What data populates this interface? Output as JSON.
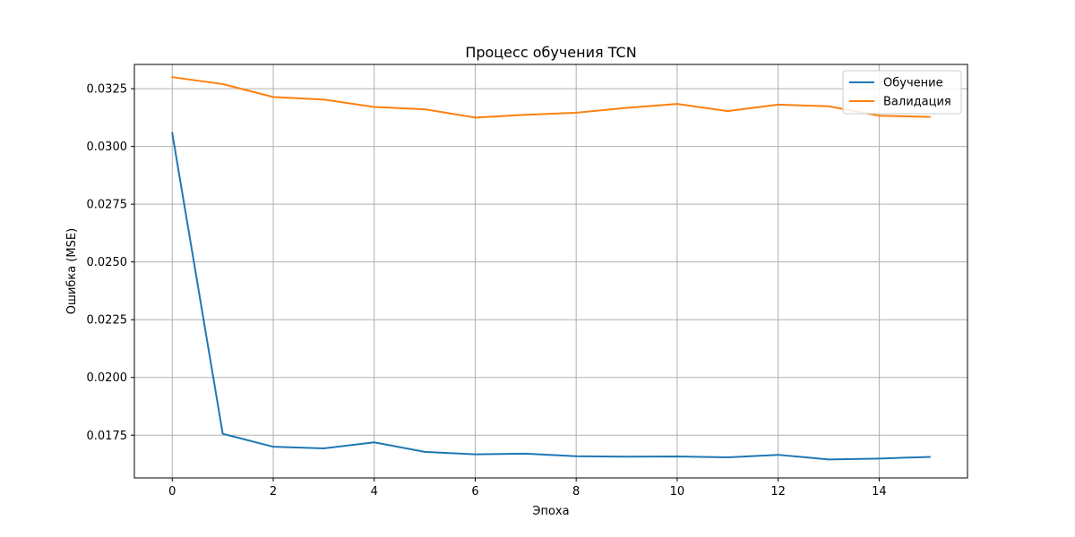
{
  "chart_data": {
    "type": "line",
    "title": "Процесс обучения TCN",
    "xlabel": "Эпоха",
    "ylabel": "Ошибка (MSE)",
    "xlim": [
      -0.75,
      15.75
    ],
    "ylim": [
      0.01565,
      0.03355
    ],
    "grid": true,
    "legend_position": "top-right",
    "x": [
      0,
      1,
      2,
      3,
      4,
      5,
      6,
      7,
      8,
      9,
      10,
      11,
      12,
      13,
      14,
      15
    ],
    "x_ticks": [
      0,
      2,
      4,
      6,
      8,
      10,
      12,
      14
    ],
    "x_tick_labels": [
      "0",
      "2",
      "4",
      "6",
      "8",
      "10",
      "12",
      "14"
    ],
    "y_ticks": [
      0.0175,
      0.02,
      0.0225,
      0.025,
      0.0275,
      0.03,
      0.0325
    ],
    "y_tick_labels": [
      "0.0175",
      "0.0200",
      "0.0225",
      "0.0250",
      "0.0275",
      "0.0300",
      "0.0325"
    ],
    "series": [
      {
        "name": "Обучение",
        "color": "#1f77b4",
        "values": [
          0.03058,
          0.01756,
          0.017,
          0.01693,
          0.01719,
          0.01678,
          0.01667,
          0.0167,
          0.01659,
          0.01657,
          0.01658,
          0.01654,
          0.01665,
          0.01645,
          0.01649,
          0.01656
        ]
      },
      {
        "name": "Валидация",
        "color": "#ff7f0e",
        "values": [
          0.033,
          0.0327,
          0.03214,
          0.03203,
          0.03171,
          0.03161,
          0.03125,
          0.03137,
          0.03146,
          0.03167,
          0.03184,
          0.03153,
          0.03181,
          0.03174,
          0.03133,
          0.03128
        ]
      }
    ]
  }
}
